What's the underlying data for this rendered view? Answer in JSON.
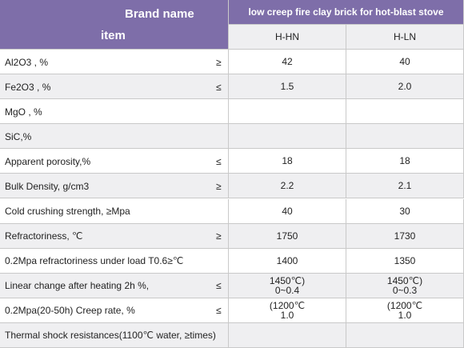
{
  "header": {
    "brand_name": "Brand name",
    "item": "item",
    "product": "low creep fire clay brick for hot-blast stove",
    "columns": [
      "H-HN",
      "H-LN"
    ]
  },
  "rows": [
    {
      "item": "Al2O3 , %",
      "symbol": "≥",
      "values": [
        [
          "42"
        ],
        [
          "40"
        ]
      ]
    },
    {
      "item": "Fe2O3 , %",
      "symbol": "≤",
      "values": [
        [
          "1.5"
        ],
        [
          "2.0"
        ]
      ]
    },
    {
      "item": "MgO , %"
    },
    {
      "item": "SiC,%"
    },
    {
      "item": "Apparent porosity,%",
      "symbol": "≤",
      "values": [
        [
          "18"
        ],
        [
          "18"
        ]
      ]
    },
    {
      "item": "Bulk Density, g/cm3",
      "symbol": "≥",
      "values": [
        [
          "2.2"
        ],
        [
          "2.1"
        ]
      ]
    },
    {
      "item": "Cold crushing strength, ≥Mpa",
      "values": [
        [
          "40"
        ],
        [
          "30"
        ]
      ]
    },
    {
      "item": "Refractoriness, ℃",
      "symbol": "≥",
      "values": [
        [
          "1750"
        ],
        [
          "1730"
        ]
      ]
    },
    {
      "item": "0.2Mpa refractoriness under load T0.6≥℃",
      "values": [
        [
          "1400"
        ],
        [
          "1350"
        ]
      ]
    },
    {
      "item": "Linear change after heating 2h %,",
      "symbol": "≤",
      "values": [
        [
          "1450℃)",
          "0~0.4"
        ],
        [
          "1450℃)",
          "0~0.3"
        ]
      ]
    },
    {
      "item": "0.2Mpa(20-50h) Creep rate, %",
      "symbol": "≤",
      "values": [
        [
          "(1200℃",
          "1.0"
        ],
        [
          "(1200℃",
          "1.0"
        ]
      ]
    },
    {
      "item": "Thermal shock resistances(1100℃ water, ≥times)"
    }
  ]
}
